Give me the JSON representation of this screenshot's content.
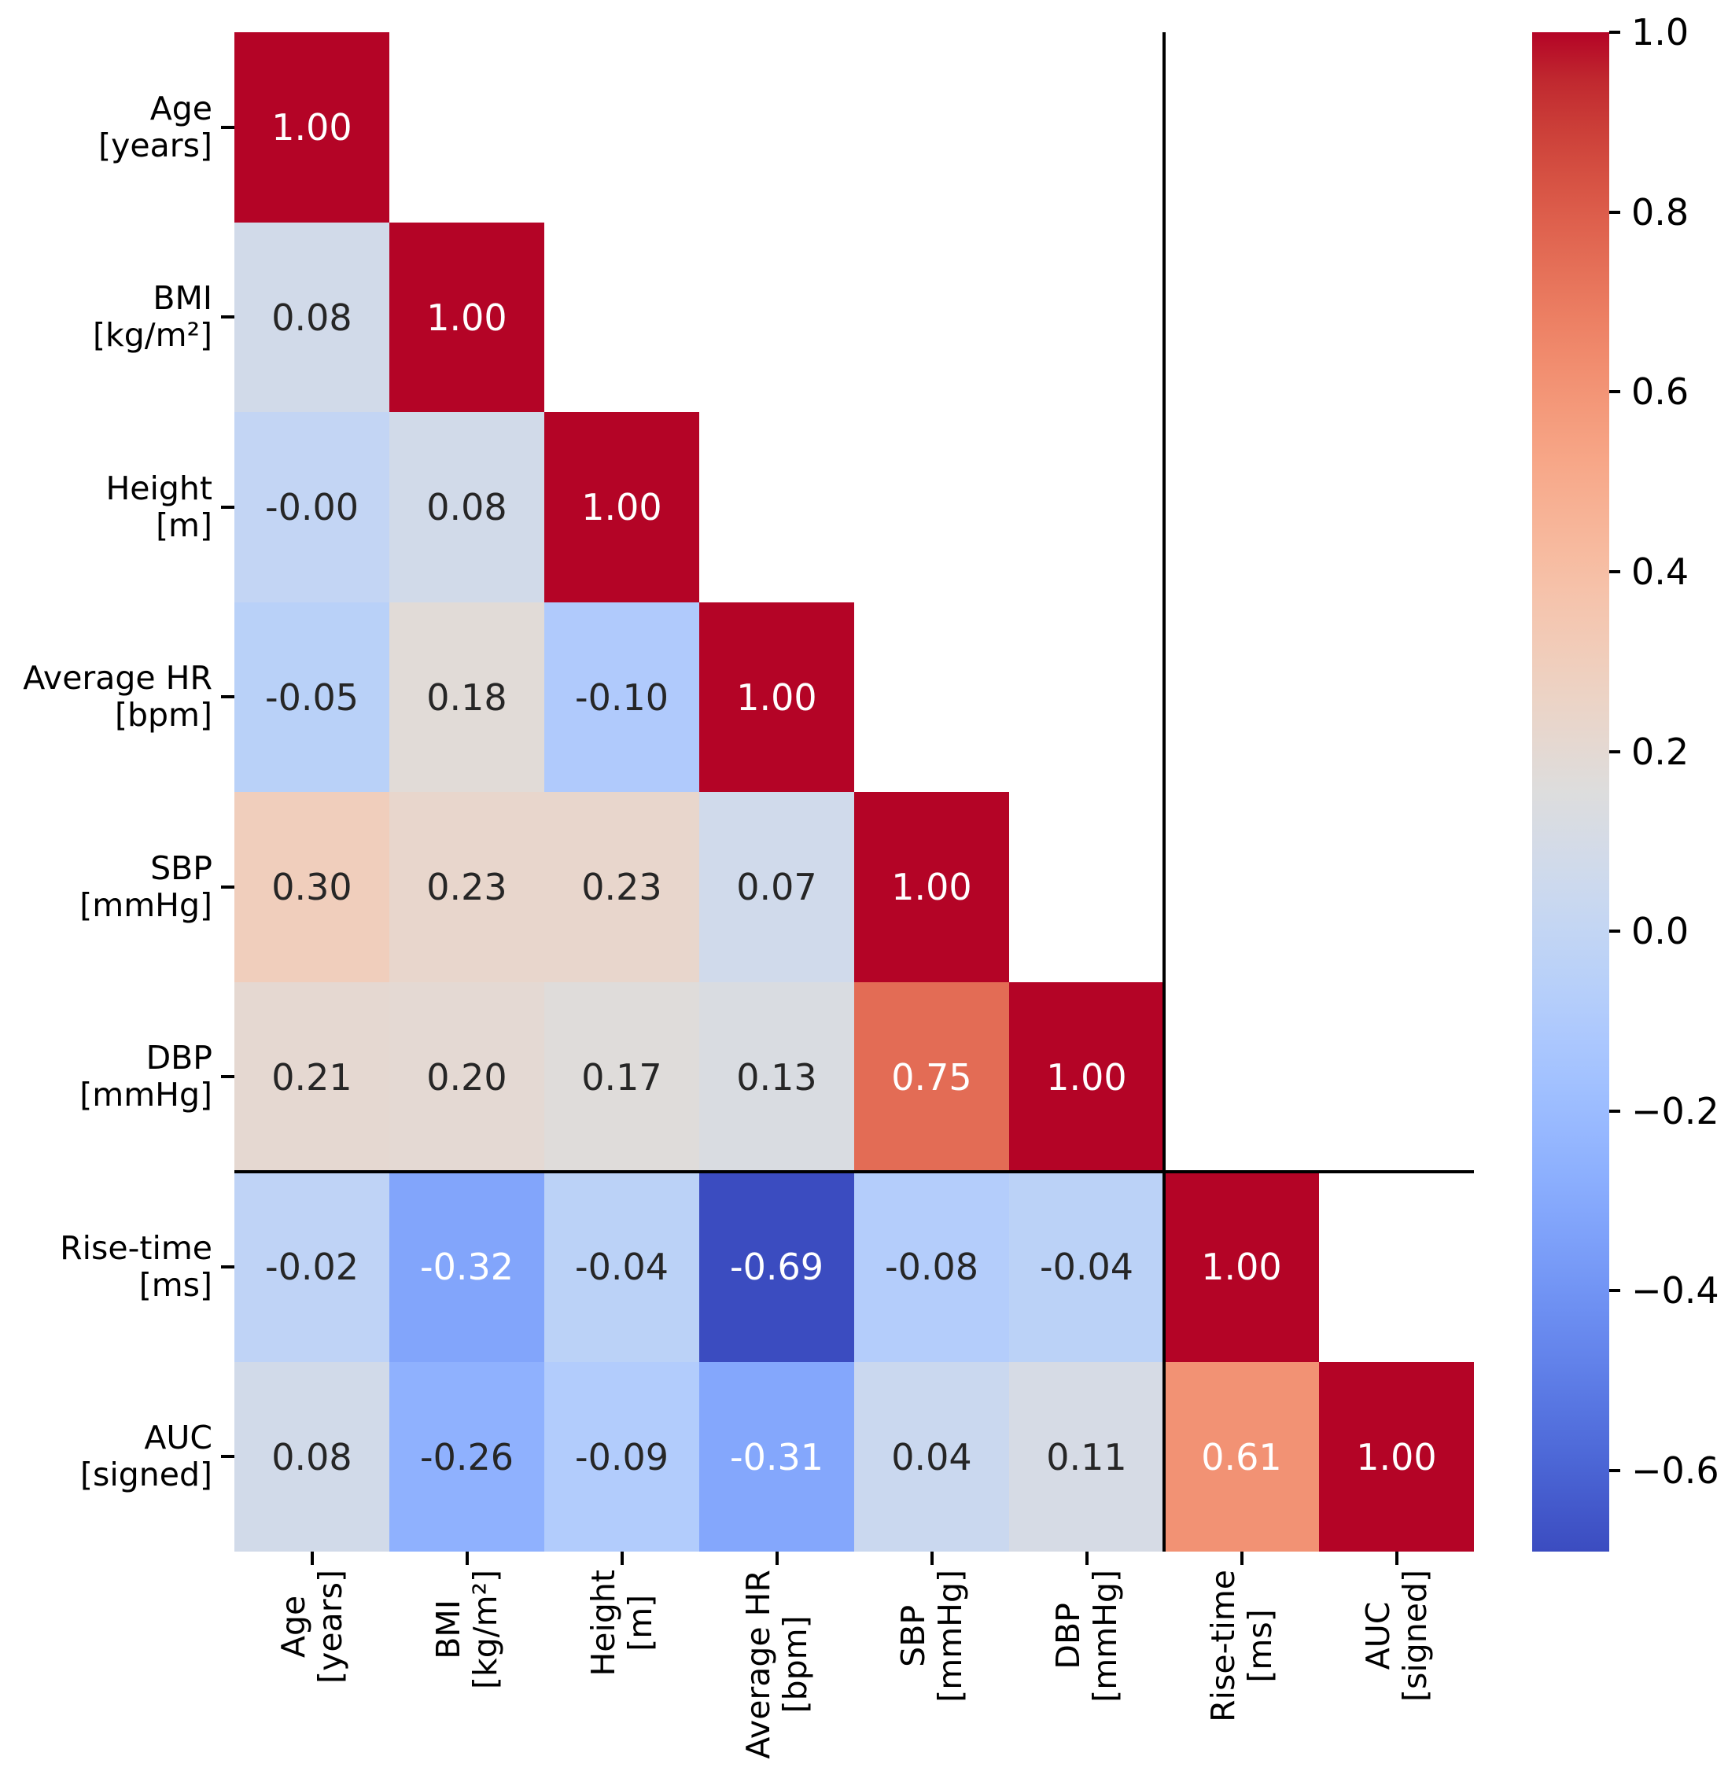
{
  "figure": {
    "background": "#ffffff"
  },
  "chart_data": {
    "type": "heatmap",
    "subtype": "lower-triangular-correlation-matrix",
    "title": "",
    "variables": [
      {
        "label": "Age",
        "unit": "[years]"
      },
      {
        "label": "BMI",
        "unit": "[kg/m²]"
      },
      {
        "label": "Height",
        "unit": "[m]"
      },
      {
        "label": "Average HR",
        "unit": "[bpm]"
      },
      {
        "label": "SBP",
        "unit": "[mmHg]"
      },
      {
        "label": "DBP",
        "unit": "[mmHg]"
      },
      {
        "label": "Rise-time",
        "unit": "[ms]"
      },
      {
        "label": "AUC",
        "unit": "[signed]"
      }
    ],
    "matrix_lower_triangle": [
      [
        "1.00"
      ],
      [
        "0.08",
        "1.00"
      ],
      [
        "-0.00",
        "0.08",
        "1.00"
      ],
      [
        "-0.05",
        "0.18",
        "-0.10",
        "1.00"
      ],
      [
        "0.30",
        "0.23",
        "0.23",
        "0.07",
        "1.00"
      ],
      [
        "0.21",
        "0.20",
        "0.17",
        "0.13",
        "0.75",
        "1.00"
      ],
      [
        "-0.02",
        "-0.32",
        "-0.04",
        "-0.69",
        "-0.08",
        "-0.04",
        "1.00"
      ],
      [
        "0.08",
        "-0.26",
        "-0.09",
        "-0.31",
        "0.04",
        "0.11",
        "0.61",
        "1.00"
      ]
    ],
    "white_text_cells": [
      [
        0,
        0
      ],
      [
        1,
        1
      ],
      [
        2,
        2
      ],
      [
        3,
        3
      ],
      [
        4,
        4
      ],
      [
        5,
        4
      ],
      [
        5,
        5
      ],
      [
        6,
        1
      ],
      [
        6,
        3
      ],
      [
        6,
        6
      ],
      [
        7,
        3
      ],
      [
        7,
        6
      ],
      [
        7,
        7
      ]
    ],
    "vmin": -0.69,
    "vmax": 1.0,
    "group_separator_after": 6,
    "colormap": {
      "name": "coolwarm",
      "anchors": [
        "#3B4CC0",
        "#445ACC",
        "#4D68D7",
        "#5775E1",
        "#6282EA",
        "#6C8EF1",
        "#779AF7",
        "#82A5FB",
        "#8DB0FE",
        "#98B9FF",
        "#A3C2FF",
        "#AEC9FD",
        "#B8D0F9",
        "#C2D5F4",
        "#CCD9EE",
        "#D5DBE6",
        "#DDDDDD",
        "#E5D8D1",
        "#ECD3C5",
        "#F1CCB9",
        "#F5C4AD",
        "#F7BBA0",
        "#F7B194",
        "#F7A687",
        "#F49A7B",
        "#F18D6F",
        "#EC7F63",
        "#E57058",
        "#DE604D",
        "#D55042",
        "#CB3E38",
        "#C0282F",
        "#B40426"
      ]
    },
    "colorbar_ticks": [
      {
        "value": 1.0,
        "label": "1.0"
      },
      {
        "value": 0.8,
        "label": "0.8"
      },
      {
        "value": 0.6,
        "label": "0.6"
      },
      {
        "value": 0.4,
        "label": "0.4"
      },
      {
        "value": 0.2,
        "label": "0.2"
      },
      {
        "value": 0.0,
        "label": "0.0"
      },
      {
        "value": -0.2,
        "label": "−0.2"
      },
      {
        "value": -0.4,
        "label": "−0.4"
      },
      {
        "value": -0.6,
        "label": "−0.6"
      }
    ],
    "colors": {
      "annotation_dark": "#262626",
      "annotation_light": "#ffffff",
      "separator_line": "#000000",
      "tick_mark": "#000000",
      "axis_label": "#000000"
    }
  }
}
